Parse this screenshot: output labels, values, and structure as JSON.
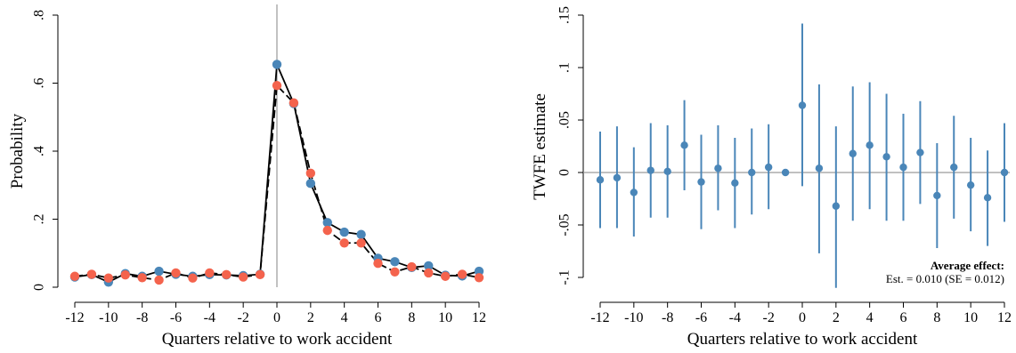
{
  "chart_data": [
    {
      "type": "line",
      "xlabel": "Quarters relative to work accident",
      "ylabel": "Probability",
      "x": [
        -12,
        -11,
        -10,
        -9,
        -8,
        -7,
        -6,
        -5,
        -4,
        -3,
        -2,
        -1,
        0,
        1,
        2,
        3,
        4,
        5,
        6,
        7,
        8,
        9,
        10,
        11,
        12
      ],
      "xticks": [
        "-12",
        "-10",
        "-8",
        "-6",
        "-4",
        "-2",
        "0",
        "2",
        "4",
        "6",
        "8",
        "10",
        "12"
      ],
      "yticks": [
        "0",
        ".2",
        ".4",
        ".6",
        ".8"
      ],
      "xlim": [
        -12,
        12
      ],
      "ylim": [
        0,
        0.8
      ],
      "reference_line_x": 0,
      "series": [
        {
          "color": "#4a86b8",
          "line_style": "solid",
          "values": [
            0.03,
            0.037,
            0.015,
            0.04,
            0.032,
            0.047,
            0.038,
            0.032,
            0.037,
            0.036,
            0.034,
            0.038,
            0.655,
            0.54,
            0.305,
            0.19,
            0.162,
            0.155,
            0.085,
            0.075,
            0.058,
            0.063,
            0.035,
            0.033,
            0.047
          ]
        },
        {
          "color": "#f4634d",
          "line_style": "dashed",
          "values": [
            0.032,
            0.038,
            0.027,
            0.036,
            0.028,
            0.021,
            0.042,
            0.027,
            0.042,
            0.037,
            0.03,
            0.037,
            0.593,
            0.542,
            0.335,
            0.167,
            0.13,
            0.13,
            0.07,
            0.045,
            0.06,
            0.042,
            0.032,
            0.038,
            0.028
          ]
        }
      ]
    },
    {
      "type": "scatter",
      "xlabel": "Quarters relative to work accident",
      "ylabel": "TWFE estimate",
      "x": [
        -12,
        -11,
        -10,
        -9,
        -8,
        -7,
        -6,
        -5,
        -4,
        -3,
        -2,
        -1,
        0,
        1,
        2,
        3,
        4,
        5,
        6,
        7,
        8,
        9,
        10,
        11,
        12
      ],
      "xticks": [
        "-12",
        "-10",
        "-8",
        "-6",
        "-4",
        "-2",
        "0",
        "2",
        "4",
        "6",
        "8",
        "10",
        "12"
      ],
      "yticks": [
        "-.1",
        "-.05",
        "0",
        ".05",
        ".1",
        ".15"
      ],
      "xlim": [
        -12,
        12
      ],
      "ylim": [
        -0.1,
        0.15
      ],
      "reference_line_y": 0,
      "color": "#4a86b8",
      "estimates": [
        -0.007,
        -0.005,
        -0.019,
        0.002,
        0.001,
        0.026,
        -0.009,
        0.004,
        -0.01,
        0.0,
        0.005,
        0.0,
        0.064,
        0.004,
        -0.032,
        0.018,
        0.026,
        0.015,
        0.005,
        0.019,
        -0.022,
        0.005,
        -0.012,
        -0.024,
        0.0
      ],
      "ci_low": [
        -0.053,
        -0.053,
        -0.061,
        -0.043,
        -0.043,
        -0.017,
        -0.054,
        -0.036,
        -0.053,
        -0.04,
        -0.035,
        null,
        -0.013,
        -0.077,
        -0.11,
        -0.046,
        -0.035,
        -0.046,
        -0.046,
        -0.03,
        -0.072,
        -0.044,
        -0.056,
        -0.07,
        -0.047
      ],
      "ci_high": [
        0.039,
        0.044,
        0.024,
        0.047,
        0.045,
        0.069,
        0.036,
        0.045,
        0.033,
        0.042,
        0.046,
        null,
        0.142,
        0.084,
        0.044,
        0.082,
        0.086,
        0.075,
        0.056,
        0.068,
        0.028,
        0.054,
        0.033,
        0.021,
        0.047
      ],
      "annotation": {
        "title": "Average effect:",
        "text": "Est. = 0.010 (SE = 0.012)"
      }
    }
  ]
}
